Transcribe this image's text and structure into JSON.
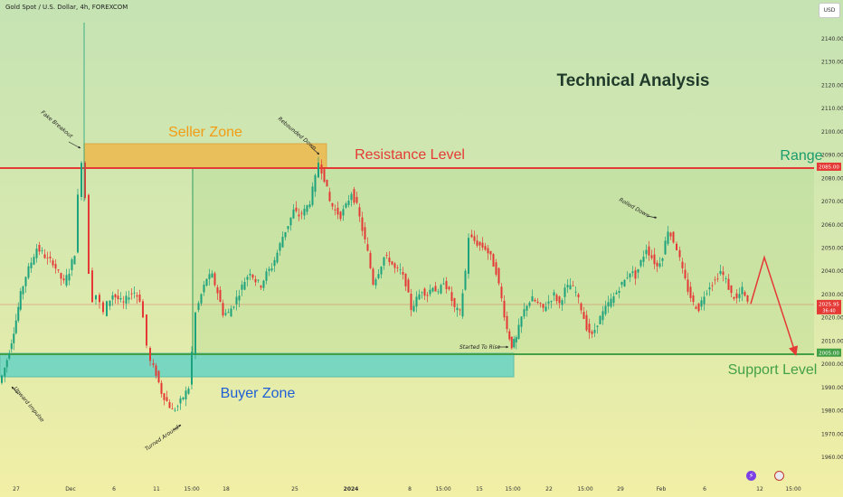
{
  "header": {
    "symbol": "Gold Spot / U.S. Dollar, 4h, FOREXCOM",
    "currency_button": "USD"
  },
  "colors": {
    "bull_candle": "#1ca27c",
    "bear_candle": "#e53935",
    "resistance_line": "#e53935",
    "support_line": "#43a047",
    "seller_zone_fill": "#f0b23e",
    "buyer_zone_fill": "#5fd2c6",
    "projection": "#e53935"
  },
  "chart_data": {
    "type": "candlestick",
    "title": "Technical Analysis",
    "ylim": [
      1955,
      2150
    ],
    "price_ticks": [
      2140,
      2130,
      2120,
      2110,
      2100,
      2090,
      2080,
      2070,
      2060,
      2050,
      2040,
      2030,
      2020,
      2010,
      2000,
      1990,
      1980,
      1970,
      1960
    ],
    "x_tick_labels": [
      "27",
      "Dec",
      "6",
      "11",
      "15:00",
      "18",
      "25",
      "2024",
      "8",
      "15:00",
      "15",
      "15:00",
      "22",
      "15:00",
      "29",
      "Feb",
      "6",
      "12",
      "15:00"
    ],
    "price_tags": [
      {
        "name": "resistance_price",
        "text": "2085.00",
        "value": 2085
      },
      {
        "name": "last_price",
        "text": "2025.95",
        "value": 2025.95,
        "countdown": "36:40"
      },
      {
        "name": "support_price",
        "text": "2005.00",
        "value": 2005
      }
    ],
    "levels": {
      "resistance": 2085,
      "support": 2005,
      "current": 2025.95
    },
    "zones": {
      "seller": {
        "label": "Seller Zone",
        "low": 2085,
        "high": 2095
      },
      "buyer": {
        "label": "Buyer Zone",
        "low": 1995,
        "high": 2005
      }
    },
    "text_annotations": {
      "resistance_label": "Resistance Level",
      "support_label": "Support Level",
      "range_label": "Range",
      "notes": [
        "Upward Impulse",
        "Fake Breakout",
        "Turned Around",
        "Rebounded Down",
        "Started To Rise",
        "Rolled Down"
      ]
    },
    "path_points": [
      [
        0,
        1992
      ],
      [
        4,
        1995
      ],
      [
        9,
        2002
      ],
      [
        14,
        2010
      ],
      [
        19,
        2019
      ],
      [
        24,
        2030
      ],
      [
        30,
        2038
      ],
      [
        36,
        2044
      ],
      [
        42,
        2050
      ],
      [
        48,
        2048
      ],
      [
        54,
        2045
      ],
      [
        60,
        2044
      ],
      [
        66,
        2039
      ],
      [
        72,
        2035
      ],
      [
        78,
        2040
      ],
      [
        84,
        2048
      ],
      [
        88,
        2072
      ],
      [
        92,
        2088
      ],
      [
        96,
        2072
      ],
      [
        100,
        2040
      ],
      [
        104,
        2028
      ],
      [
        108,
        2030
      ],
      [
        112,
        2026
      ],
      [
        116,
        2022
      ],
      [
        120,
        2026
      ],
      [
        126,
        2030
      ],
      [
        132,
        2028
      ],
      [
        138,
        2026
      ],
      [
        144,
        2030
      ],
      [
        150,
        2031
      ],
      [
        156,
        2028
      ],
      [
        160,
        2020
      ],
      [
        164,
        2008
      ],
      [
        168,
        2001
      ],
      [
        174,
        1996
      ],
      [
        180,
        1988
      ],
      [
        186,
        1984
      ],
      [
        192,
        1980
      ],
      [
        198,
        1982
      ],
      [
        204,
        1986
      ],
      [
        210,
        1990
      ],
      [
        214,
        2005
      ],
      [
        218,
        2022
      ],
      [
        224,
        2030
      ],
      [
        230,
        2037
      ],
      [
        236,
        2038
      ],
      [
        242,
        2031
      ],
      [
        248,
        2022
      ],
      [
        254,
        2022
      ],
      [
        260,
        2026
      ],
      [
        266,
        2031
      ],
      [
        272,
        2036
      ],
      [
        278,
        2040
      ],
      [
        284,
        2036
      ],
      [
        290,
        2034
      ],
      [
        296,
        2039
      ],
      [
        302,
        2042
      ],
      [
        308,
        2048
      ],
      [
        314,
        2055
      ],
      [
        320,
        2060
      ],
      [
        326,
        2066
      ],
      [
        332,
        2064
      ],
      [
        338,
        2066
      ],
      [
        344,
        2070
      ],
      [
        350,
        2080
      ],
      [
        354,
        2087
      ],
      [
        360,
        2080
      ],
      [
        366,
        2070
      ],
      [
        372,
        2066
      ],
      [
        378,
        2064
      ],
      [
        384,
        2068
      ],
      [
        390,
        2074
      ],
      [
        396,
        2068
      ],
      [
        402,
        2058
      ],
      [
        408,
        2048
      ],
      [
        414,
        2035
      ],
      [
        420,
        2040
      ],
      [
        426,
        2046
      ],
      [
        432,
        2045
      ],
      [
        438,
        2041
      ],
      [
        444,
        2040
      ],
      [
        450,
        2035
      ],
      [
        456,
        2024
      ],
      [
        462,
        2028
      ],
      [
        468,
        2032
      ],
      [
        474,
        2030
      ],
      [
        480,
        2034
      ],
      [
        486,
        2030
      ],
      [
        492,
        2036
      ],
      [
        498,
        2031
      ],
      [
        504,
        2024
      ],
      [
        510,
        2022
      ],
      [
        516,
        2040
      ],
      [
        520,
        2055
      ],
      [
        526,
        2053
      ],
      [
        532,
        2051
      ],
      [
        538,
        2050
      ],
      [
        544,
        2046
      ],
      [
        550,
        2040
      ],
      [
        556,
        2028
      ],
      [
        562,
        2015
      ],
      [
        567,
        2008
      ],
      [
        572,
        2011
      ],
      [
        578,
        2020
      ],
      [
        584,
        2026
      ],
      [
        590,
        2028
      ],
      [
        596,
        2026
      ],
      [
        602,
        2024
      ],
      [
        608,
        2027
      ],
      [
        614,
        2030
      ],
      [
        620,
        2026
      ],
      [
        626,
        2032
      ],
      [
        632,
        2034
      ],
      [
        638,
        2031
      ],
      [
        644,
        2024
      ],
      [
        650,
        2016
      ],
      [
        656,
        2012
      ],
      [
        662,
        2018
      ],
      [
        668,
        2022
      ],
      [
        674,
        2026
      ],
      [
        680,
        2029
      ],
      [
        686,
        2033
      ],
      [
        692,
        2036
      ],
      [
        698,
        2040
      ],
      [
        704,
        2038
      ],
      [
        710,
        2044
      ],
      [
        716,
        2050
      ],
      [
        722,
        2046
      ],
      [
        728,
        2042
      ],
      [
        734,
        2047
      ],
      [
        740,
        2058
      ],
      [
        746,
        2053
      ],
      [
        750,
        2050
      ],
      [
        756,
        2040
      ],
      [
        762,
        2032
      ],
      [
        768,
        2026
      ],
      [
        774,
        2024
      ],
      [
        780,
        2030
      ],
      [
        786,
        2034
      ],
      [
        792,
        2036
      ],
      [
        798,
        2040
      ],
      [
        804,
        2036
      ],
      [
        810,
        2030
      ],
      [
        816,
        2028
      ],
      [
        822,
        2032
      ],
      [
        828,
        2026
      ]
    ],
    "projection_path": [
      [
        830,
        2026
      ],
      [
        845,
        2046
      ],
      [
        880,
        2004
      ]
    ]
  }
}
